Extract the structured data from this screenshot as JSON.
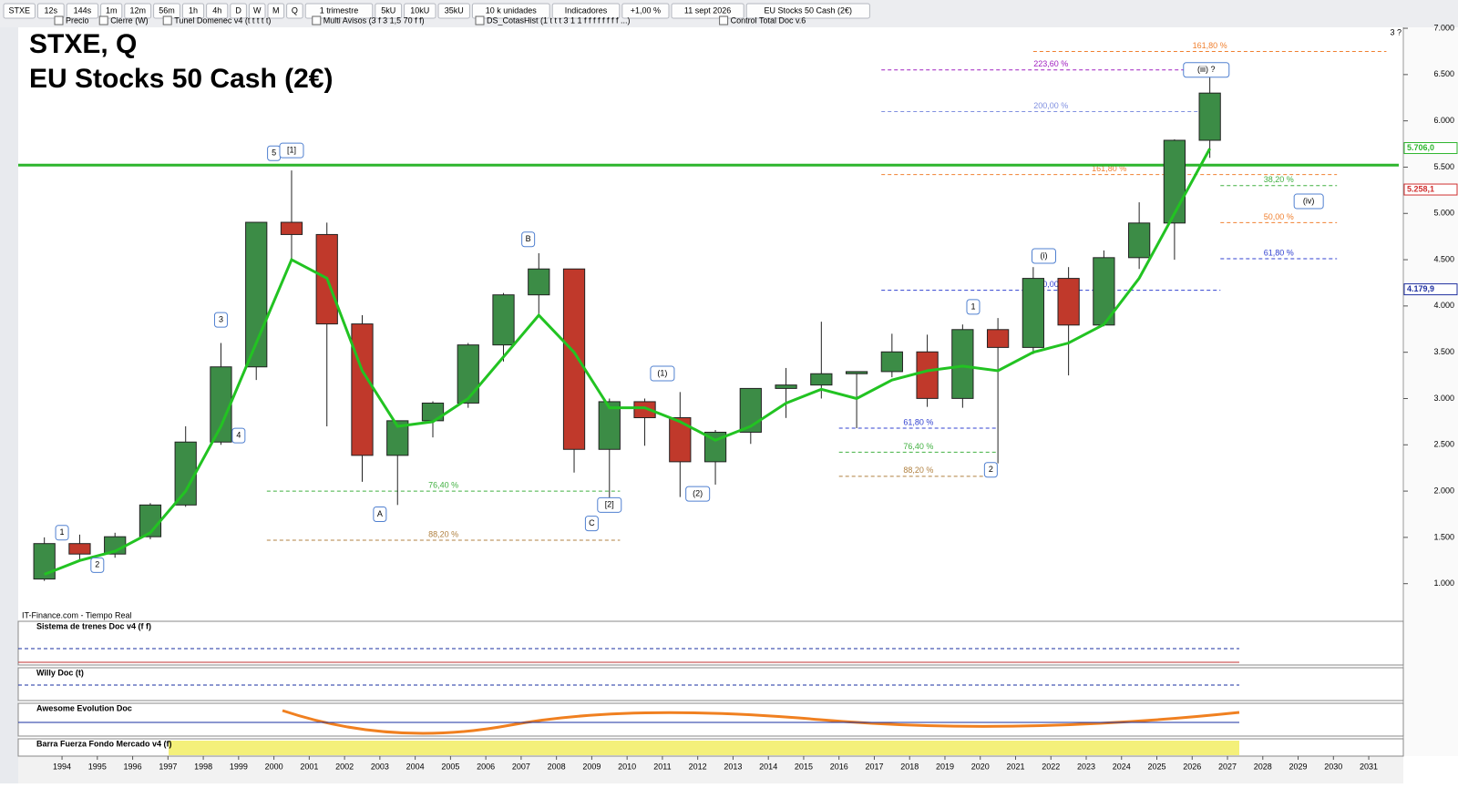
{
  "toolbar": [
    "STXE",
    "12s",
    "144s",
    "1m",
    "12m",
    "56m",
    "1h",
    "4h",
    "D",
    "W",
    "M",
    "Q",
    "1 trimestre",
    "5kU",
    "10kU",
    "35kU",
    "10 k unidades",
    "Indicadores",
    "+1,00 %",
    "11 sept 2026",
    "EU Stocks 50 Cash (2€)"
  ],
  "overlays": [
    "Precio",
    "Cierre (W)",
    "Tunel Domenec v4 (t t t t t)",
    "Multi Avisos (3 f 3 1,5 70 f f)",
    "DS_CotasHist (1 t t t 3 1 1 f f f f f f f f ...)",
    "Control Total Doc v.6"
  ],
  "source": "IT-Finance.com - Tiempo Real",
  "panels": [
    "Sistema de trenes Doc v4 (f f)",
    "Willy Doc (t)",
    "Awesome Evolution Doc",
    "Barra Fuerza Fondo Mercado v4 (f)"
  ],
  "corner_note": "3 ?",
  "chart_data": {
    "type": "candlestick",
    "title": "STXE, Q",
    "subtitle": "EU Stocks 50 Cash (2€)",
    "x": [
      1993,
      1994,
      1995,
      1996,
      1997,
      1998,
      1999,
      2000,
      2001,
      2002,
      2003,
      2004,
      2005,
      2006,
      2007,
      2008,
      2009,
      2010,
      2011,
      2012,
      2013,
      2014,
      2015,
      2016,
      2017,
      2018,
      2019,
      2020,
      2021,
      2022,
      2023,
      2024,
      2025,
      2026
    ],
    "open": [
      1050,
      1433,
      1320,
      1507,
      1850,
      2530,
      3342,
      4904,
      4772,
      3806,
      2386,
      2760,
      2951,
      3579,
      4120,
      4400,
      2451,
      2966,
      2793,
      2317,
      2636,
      3109,
      3146,
      3268,
      3291,
      3504,
      3001,
      3745,
      3552,
      4298,
      3794,
      4522,
      4896,
      5790
    ],
    "high": [
      1500,
      1530,
      1550,
      1870,
      2700,
      3600,
      4900,
      5464,
      4900,
      3900,
      2700,
      2970,
      3600,
      4140,
      4570,
      4400,
      3000,
      3000,
      3070,
      2660,
      3110,
      3330,
      3830,
      3290,
      3700,
      3690,
      3800,
      3870,
      4420,
      4420,
      4600,
      5120,
      5800,
      6580
    ],
    "low": [
      1030,
      1250,
      1280,
      1480,
      1830,
      2500,
      3200,
      4500,
      2700,
      2100,
      1850,
      2580,
      2900,
      3400,
      3900,
      2200,
      1810,
      2490,
      1936,
      2070,
      2510,
      2790,
      3000,
      2680,
      3230,
      2910,
      2900,
      2300,
      3480,
      3250,
      3780,
      4400,
      4500,
      5600
    ],
    "close": [
      1433,
      1320,
      1507,
      1850,
      2530,
      3342,
      4904,
      4772,
      3806,
      2386,
      2760,
      2951,
      3579,
      4120,
      4400,
      2451,
      2966,
      2793,
      2317,
      2636,
      3109,
      3146,
      3268,
      3291,
      3504,
      3001,
      3745,
      3552,
      4298,
      3794,
      4522,
      4896,
      5790,
      6300
    ],
    "up_color": "#3c8c46",
    "down_color": "#c0392b",
    "series": [
      {
        "color": "#22c322",
        "values": [
          1100,
          1250,
          1350,
          1550,
          2000,
          2700,
          3600,
          4500,
          4300,
          3300,
          2700,
          2750,
          3000,
          3450,
          3900,
          3500,
          2900,
          2900,
          2750,
          2550,
          2700,
          2950,
          3100,
          3000,
          3200,
          3300,
          3350,
          3300,
          3500,
          3600,
          3800,
          4300,
          5000,
          5700
        ]
      }
    ],
    "hline": {
      "value": 5522,
      "color": "#2db52d"
    },
    "fib_levels": [
      {
        "label": "161,80 %",
        "price": 6750,
        "x0": 2021.5,
        "x1": 2031.5,
        "color": "#f08030"
      },
      {
        "label": "223,60 %",
        "price": 6550,
        "x0": 2017.2,
        "x1": 2026.8,
        "color": "#a020c0"
      },
      {
        "label": "200,00 %",
        "price": 6100,
        "x0": 2017.2,
        "x1": 2026.8,
        "color": "#8090e0"
      },
      {
        "label": "161,80 %",
        "price": 5420,
        "x0": 2017.2,
        "x1": 2030.1,
        "color": "#f08030"
      },
      {
        "label": "100,00 %",
        "price": 4170,
        "x0": 2017.2,
        "x1": 2026.8,
        "color": "#3040d0"
      },
      {
        "label": "38,20 %",
        "price": 5300,
        "x0": 2026.8,
        "x1": 2030.1,
        "color": "#40b040"
      },
      {
        "label": "50,00 %",
        "price": 4900,
        "x0": 2026.8,
        "x1": 2030.1,
        "color": "#f08030"
      },
      {
        "label": "61,80 %",
        "price": 4510,
        "x0": 2026.8,
        "x1": 2030.1,
        "color": "#3040d0"
      },
      {
        "label": "61,80 %",
        "price": 2680,
        "x0": 2016.0,
        "x1": 2020.5,
        "color": "#3040d0"
      },
      {
        "label": "76,40 %",
        "price": 2420,
        "x0": 2016.0,
        "x1": 2020.5,
        "color": "#40b040"
      },
      {
        "label": "88,20 %",
        "price": 2160,
        "x0": 2016.0,
        "x1": 2020.5,
        "color": "#b08040"
      },
      {
        "label": "76,40 %",
        "price": 2000,
        "x0": 1999.8,
        "x1": 2009.8,
        "color": "#40b040"
      },
      {
        "label": "88,20 %",
        "price": 1470,
        "x0": 1999.8,
        "x1": 2009.8,
        "color": "#b08040"
      }
    ],
    "waves": [
      {
        "text": "1",
        "x": 1994.0,
        "y": 1550
      },
      {
        "text": "2",
        "x": 1995.0,
        "y": 1200
      },
      {
        "text": "3",
        "x": 1998.5,
        "y": 3850
      },
      {
        "text": "4",
        "x": 1999.0,
        "y": 2600
      },
      {
        "text": "5",
        "x": 2000.0,
        "y": 5650
      },
      {
        "text": "[1]",
        "x": 2000.5,
        "y": 5680
      },
      {
        "text": "A",
        "x": 2003.0,
        "y": 1750
      },
      {
        "text": "B",
        "x": 2007.2,
        "y": 4720
      },
      {
        "text": "C",
        "x": 2009.0,
        "y": 1650
      },
      {
        "text": "[2]",
        "x": 2009.5,
        "y": 1850
      },
      {
        "text": "(1)",
        "x": 2011.0,
        "y": 3270
      },
      {
        "text": "(2)",
        "x": 2012.0,
        "y": 1970
      },
      {
        "text": "1",
        "x": 2019.8,
        "y": 3990
      },
      {
        "text": "2",
        "x": 2020.3,
        "y": 2230
      },
      {
        "text": "(i)",
        "x": 2021.8,
        "y": 4540
      },
      {
        "text": "(iii) ?",
        "x": 2026.4,
        "y": 6550
      },
      {
        "text": "(iv)",
        "x": 2029.3,
        "y": 5130
      }
    ],
    "price_tags": [
      {
        "value": 5706.0,
        "label": "5.706,0",
        "color": "#2db52d"
      },
      {
        "value": 5258.1,
        "label": "5.258,1",
        "color": "#d03030"
      },
      {
        "value": 4179.9,
        "label": "4.179,9",
        "color": "#2030a0"
      }
    ],
    "xlim": [
      1992.76,
      2031.85
    ],
    "xticks": [
      1994,
      1995,
      1996,
      1997,
      1998,
      1999,
      2000,
      2001,
      2002,
      2003,
      2004,
      2005,
      2006,
      2007,
      2008,
      2009,
      2010,
      2011,
      2012,
      2013,
      2014,
      2015,
      2016,
      2017,
      2018,
      2019,
      2020,
      2021,
      2022,
      2023,
      2024,
      2025,
      2026,
      2027,
      2028,
      2029,
      2030,
      2031
    ],
    "ylim": [
      810,
      7030
    ],
    "yticks": [
      {
        "value": 1000,
        "label": "1.000"
      },
      {
        "value": 1500,
        "label": "1.500"
      },
      {
        "value": 2000,
        "label": "2.000"
      },
      {
        "value": 2500,
        "label": "2.500"
      },
      {
        "value": 3000,
        "label": "3.000"
      },
      {
        "value": 3500,
        "label": "3.500"
      },
      {
        "value": 4000,
        "label": "4.000"
      },
      {
        "value": 4500,
        "label": "4.500"
      },
      {
        "value": 5000,
        "label": "5.000"
      },
      {
        "value": 5500,
        "label": "5.500"
      },
      {
        "value": 6000,
        "label": "6.000"
      },
      {
        "value": 6500,
        "label": "6.500"
      },
      {
        "value": 7000,
        "label": "7.000"
      }
    ],
    "grid": false
  }
}
